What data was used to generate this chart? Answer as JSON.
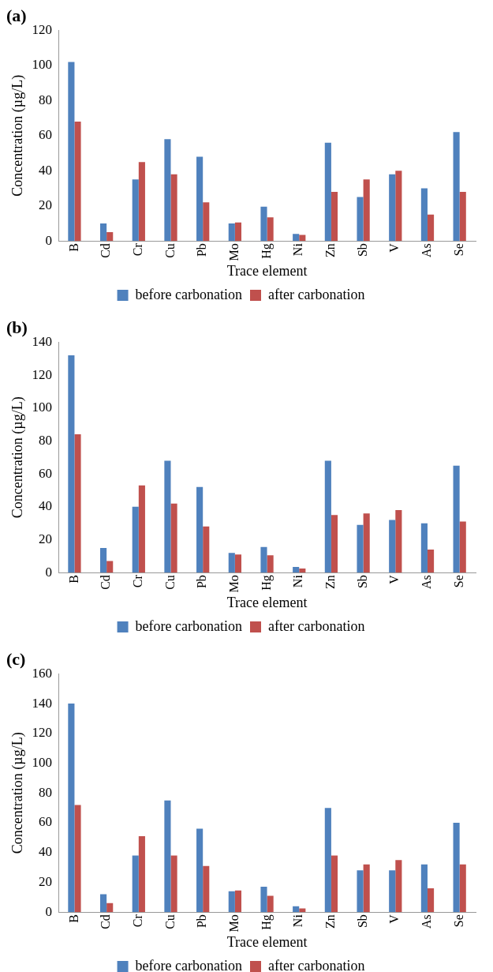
{
  "chart_data": [
    {
      "type": "bar",
      "title": "(a)",
      "xlabel": "Trace element",
      "ylabel": "Concentration (µg/L)",
      "categories": [
        "B",
        "Cd",
        "Cr",
        "Cu",
        "Pb",
        "Mo",
        "Hg",
        "Ni",
        "Zn",
        "Sb",
        "V",
        "As",
        "Se"
      ],
      "ylim": [
        0,
        120
      ],
      "yticks": [
        0,
        20,
        40,
        60,
        80,
        100,
        120
      ],
      "grid": false,
      "legend": "bottom",
      "series": [
        {
          "name": "before carbonation",
          "color": "#4f81bd",
          "values": [
            102,
            10,
            35,
            58,
            48,
            10,
            19.5,
            4,
            56,
            25,
            38,
            30,
            62
          ]
        },
        {
          "name": "after carbonation",
          "color": "#c0504d",
          "values": [
            68,
            5,
            45,
            38,
            22,
            10.5,
            13.5,
            3.5,
            28,
            35,
            40,
            15,
            28
          ]
        }
      ]
    },
    {
      "type": "bar",
      "title": "(b)",
      "xlabel": "Trace element",
      "ylabel": "Concentration (µg/L)",
      "categories": [
        "B",
        "Cd",
        "Cr",
        "Cu",
        "Pb",
        "Mo",
        "Hg",
        "Ni",
        "Zn",
        "Sb",
        "V",
        "As",
        "Se"
      ],
      "ylim": [
        0,
        140
      ],
      "yticks": [
        0,
        20,
        40,
        60,
        80,
        100,
        120,
        140
      ],
      "grid": false,
      "legend": "bottom",
      "series": [
        {
          "name": "before carbonation",
          "color": "#4f81bd",
          "values": [
            132,
            15,
            40,
            68,
            52,
            12,
            15.5,
            3.5,
            68,
            29,
            32,
            30,
            65
          ]
        },
        {
          "name": "after carbonation",
          "color": "#c0504d",
          "values": [
            84,
            7,
            53,
            42,
            28,
            11,
            10.5,
            2.5,
            35,
            36,
            38,
            14,
            31
          ]
        }
      ]
    },
    {
      "type": "bar",
      "title": "(c)",
      "xlabel": "Trace element",
      "ylabel": "Concentration (µg/L)",
      "categories": [
        "B",
        "Cd",
        "Cr",
        "Cu",
        "Pb",
        "Mo",
        "Hg",
        "Ni",
        "Zn",
        "Sb",
        "V",
        "As",
        "Se"
      ],
      "ylim": [
        0,
        160
      ],
      "yticks": [
        0,
        20,
        40,
        60,
        80,
        100,
        120,
        140,
        160
      ],
      "grid": false,
      "legend": "bottom",
      "series": [
        {
          "name": "before carbonation",
          "color": "#4f81bd",
          "values": [
            140,
            12,
            38,
            75,
            56,
            14,
            17,
            4,
            70,
            28,
            28,
            32,
            60
          ]
        },
        {
          "name": "after carbonation",
          "color": "#c0504d",
          "values": [
            72,
            6,
            51,
            38,
            31,
            14.5,
            11,
            2.5,
            38,
            32,
            35,
            16,
            32
          ]
        }
      ]
    }
  ]
}
